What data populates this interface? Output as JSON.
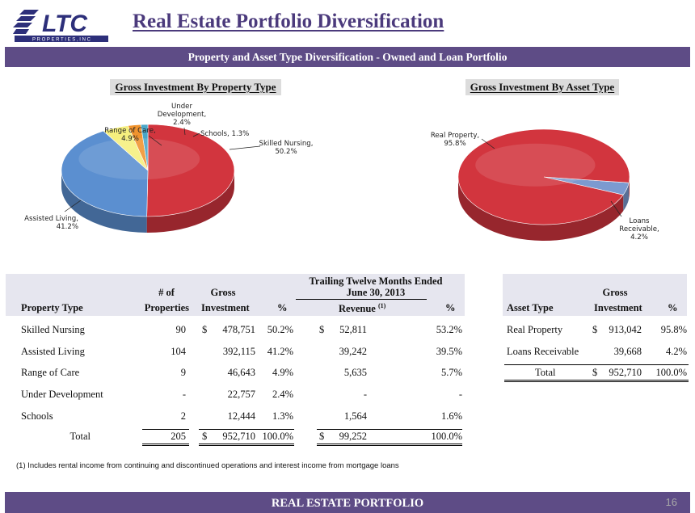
{
  "logo": {
    "main": "LTC",
    "sub": "P R O P E R T I E S ,  I N C"
  },
  "title": "Real Estate Portfolio Diversification",
  "subtitle": "Property and Asset Type Diversification - Owned and Loan Portfolio",
  "chart_data": [
    {
      "type": "pie",
      "title": "Gross Investment By Property Type",
      "slices": [
        {
          "label": "Skilled Nursing",
          "value": 50.2,
          "display": "50.2%",
          "color": "#d2353e"
        },
        {
          "label": "Assisted Living",
          "value": 41.2,
          "display": "41.2%",
          "color": "#5b8fd0"
        },
        {
          "label": "Range of Care",
          "value": 4.9,
          "display": "4.9%",
          "color": "#f5ef7e"
        },
        {
          "label": "Under Development",
          "value": 2.4,
          "display": "2.4%",
          "color": "#f0932e"
        },
        {
          "label": "Schools",
          "value": 1.3,
          "display": "1.3%",
          "color": "#4aa6c8"
        }
      ]
    },
    {
      "type": "pie",
      "title": "Gross Investment By Asset Type",
      "slices": [
        {
          "label": "Real Property",
          "value": 95.8,
          "display": "95.8%",
          "color": "#d2353e"
        },
        {
          "label": "Loans Receivable",
          "value": 4.2,
          "display": "4.2%",
          "color": "#7c9ad0"
        }
      ]
    }
  ],
  "pie_labels": {
    "left": [
      {
        "lines": [
          "Skilled Nursing,",
          "50.2%"
        ]
      },
      {
        "lines": [
          "Assisted Living,",
          "41.2%"
        ]
      },
      {
        "lines": [
          "Range of Care,",
          "4.9%"
        ]
      },
      {
        "lines": [
          "Under",
          "Development,",
          "2.4%"
        ]
      },
      {
        "lines": [
          "Schools, 1.3%"
        ]
      }
    ],
    "right": [
      {
        "lines": [
          "Real Property,",
          "95.8%"
        ]
      },
      {
        "lines": [
          "Loans",
          "Receivable,",
          "4.2%"
        ]
      }
    ]
  },
  "property_table": {
    "group_header_1": "Trailing Twelve Months Ended",
    "group_header_2": "June 30, 2013",
    "headers": {
      "num_of": "# of",
      "properties": "Properties",
      "gross": "Gross",
      "investment": "Investment",
      "pct": "%",
      "revenue": "Revenue",
      "revenue_sup": "(1)",
      "pct2": "%",
      "property_type": "Property Type"
    },
    "rows": [
      {
        "type": "Skilled Nursing",
        "count": "90",
        "dollar": "$",
        "investment": "478,751",
        "pct": "50.2%",
        "rev_dollar": "$",
        "revenue": "52,811",
        "rev_pct": "53.2%"
      },
      {
        "type": "Assisted Living",
        "count": "104",
        "dollar": "",
        "investment": "392,115",
        "pct": "41.2%",
        "rev_dollar": "",
        "revenue": "39,242",
        "rev_pct": "39.5%"
      },
      {
        "type": "Range of Care",
        "count": "9",
        "dollar": "",
        "investment": "46,643",
        "pct": "4.9%",
        "rev_dollar": "",
        "revenue": "5,635",
        "rev_pct": "5.7%"
      },
      {
        "type": "Under Development",
        "count": "-",
        "dollar": "",
        "investment": "22,757",
        "pct": "2.4%",
        "rev_dollar": "",
        "revenue": "-",
        "rev_pct": "-"
      },
      {
        "type": "Schools",
        "count": "2",
        "dollar": "",
        "investment": "12,444",
        "pct": "1.3%",
        "rev_dollar": "",
        "revenue": "1,564",
        "rev_pct": "1.6%"
      }
    ],
    "total": {
      "label": "Total",
      "count": "205",
      "dollar": "$",
      "investment": "952,710",
      "pct": "100.0%",
      "rev_dollar": "$",
      "revenue": "99,252",
      "rev_pct": "100.0%"
    }
  },
  "asset_table": {
    "headers": {
      "gross": "Gross",
      "asset_type": "Asset Type",
      "investment": "Investment",
      "pct": "%"
    },
    "rows": [
      {
        "type": "Real Property",
        "dollar": "$",
        "investment": "913,042",
        "pct": "95.8%"
      },
      {
        "type": "Loans Receivable",
        "dollar": "",
        "investment": "39,668",
        "pct": "4.2%"
      }
    ],
    "total": {
      "label": "Total",
      "dollar": "$",
      "investment": "952,710",
      "pct": "100.0%"
    }
  },
  "footnote": "(1)    Includes rental income from continuing and discontinued operations and interest income from mortgage loans",
  "footer": {
    "label": "REAL ESTATE PORTFOLIO",
    "page": "16"
  }
}
